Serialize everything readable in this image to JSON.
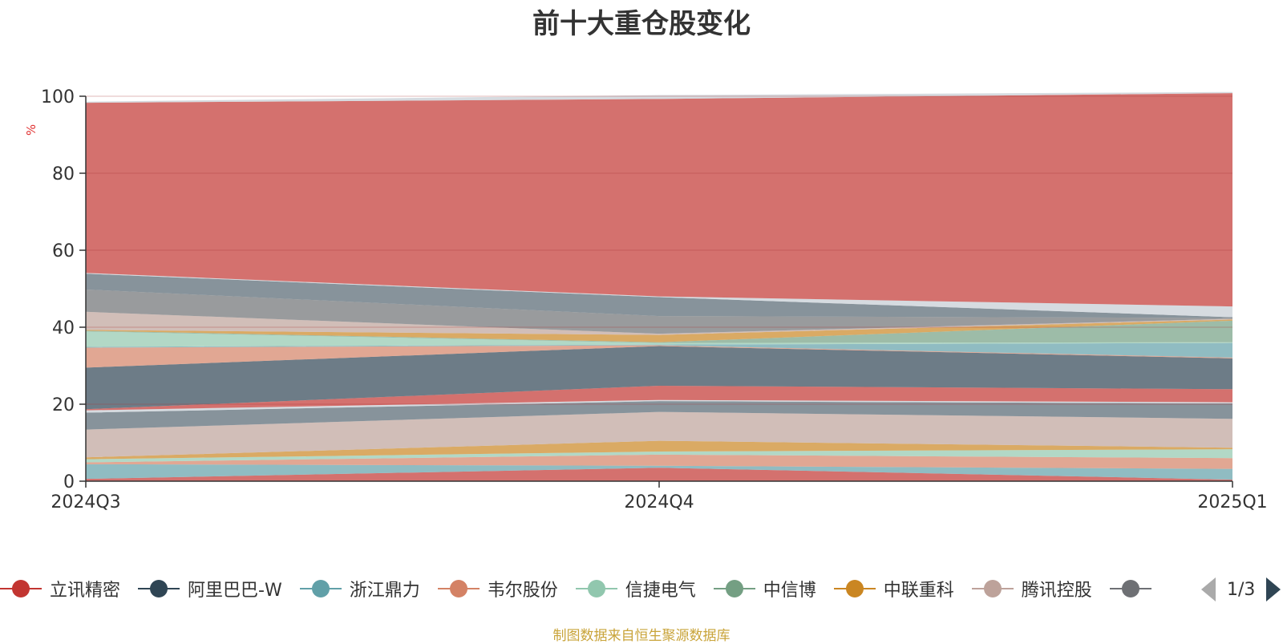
{
  "chart_data": {
    "type": "area",
    "title": "前十大重仓股变化",
    "ylabel": "%",
    "xlabel": "",
    "categories": [
      "2024Q3",
      "2024Q4",
      "2025Q1"
    ],
    "ylim": [
      0,
      100
    ],
    "yticks": [
      0,
      20,
      40,
      60,
      80,
      100
    ],
    "stacked": true,
    "bands": [
      {
        "color": "#c23531",
        "values": [
          0.6,
          3.5,
          0.4
        ]
      },
      {
        "color": "#61a0a8",
        "values": [
          3.8,
          0.5,
          2.8
        ]
      },
      {
        "color": "#d48265",
        "values": [
          0.5,
          2.9,
          2.8
        ]
      },
      {
        "color": "#91c7ae",
        "values": [
          0.8,
          0.8,
          2.3
        ]
      },
      {
        "color": "#ca8622",
        "values": [
          0.5,
          2.8,
          0.4
        ]
      },
      {
        "color": "#bda29a",
        "values": [
          7.2,
          7.5,
          7.5
        ]
      },
      {
        "color": "#546570",
        "values": [
          4.4,
          2.8,
          4.0
        ]
      },
      {
        "color": "#c4ccd3",
        "values": [
          0.6,
          0.3,
          0.3
        ]
      },
      {
        "color": "#c23531",
        "values": [
          0.3,
          3.7,
          3.4
        ]
      },
      {
        "color": "#2f4554",
        "values": [
          10.8,
          10.3,
          8.0
        ]
      },
      {
        "color": "#d48265",
        "values": [
          5.2,
          0.2,
          0.2
        ]
      },
      {
        "color": "#61a0a8",
        "values": [
          0.2,
          0.2,
          3.8
        ]
      },
      {
        "color": "#91c7ae",
        "values": [
          4.0,
          0.4,
          0.2
        ]
      },
      {
        "color": "#749f83",
        "values": [
          0.2,
          0.2,
          5.6
        ]
      },
      {
        "color": "#ca8622",
        "values": [
          0.2,
          1.9,
          0.3
        ]
      },
      {
        "color": "#bda29a",
        "values": [
          4.7,
          0.3,
          0.2
        ]
      },
      {
        "color": "#6e7074",
        "values": [
          5.8,
          4.6,
          0.2
        ]
      },
      {
        "color": "#546570",
        "values": [
          4.1,
          4.9,
          0.2
        ]
      },
      {
        "color": "#c4ccd3",
        "values": [
          0.2,
          0.2,
          2.8
        ]
      },
      {
        "color": "#c23531",
        "values": [
          44.2,
          51.3,
          55.4
        ]
      },
      {
        "color": "#c4ccd3",
        "values": [
          0.3,
          1.0,
          0.3
        ]
      }
    ],
    "legend": [
      {
        "name": "立讯精密",
        "color": "#c23531"
      },
      {
        "name": "阿里巴巴-W",
        "color": "#2f4554"
      },
      {
        "name": "浙江鼎力",
        "color": "#61a0a8"
      },
      {
        "name": "韦尔股份",
        "color": "#d48265"
      },
      {
        "name": "信捷电气",
        "color": "#91c7ae"
      },
      {
        "name": "中信博",
        "color": "#749f83"
      },
      {
        "name": "中联重科",
        "color": "#ca8622"
      },
      {
        "name": "腾讯控股",
        "color": "#bda29a"
      },
      {
        "name": "",
        "color": "#6e7074"
      }
    ],
    "legend_position": "bottom",
    "grid": true
  },
  "pager": {
    "text": "1/3"
  },
  "source": "制图数据来自恒生聚源数据库"
}
